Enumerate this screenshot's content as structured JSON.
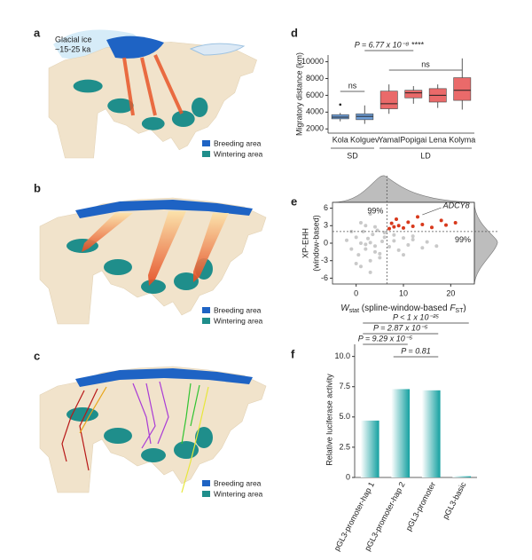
{
  "maps": [
    {
      "panel_label": "a",
      "annotation": [
        "Glacial ice",
        "~15-25 ka"
      ],
      "legend": [
        "Breeding area",
        "Wintering area"
      ]
    },
    {
      "panel_label": "b",
      "legend": [
        "Breeding area",
        "Wintering area"
      ]
    },
    {
      "panel_label": "c",
      "legend": [
        "Breeding area",
        "Wintering area"
      ]
    }
  ],
  "chart_data": [
    {
      "type": "box",
      "panel_label": "d",
      "y_label": "Migratory distance (km)",
      "categories": [
        "Kola",
        "Kolguev",
        "Yamal",
        "Popigai",
        "Lena",
        "Kolyma"
      ],
      "group_of": [
        "SD",
        "SD",
        "LD",
        "LD",
        "LD",
        "LD"
      ],
      "colors": [
        "#6f9fd8",
        "#6f9fd8",
        "#ea6a6a",
        "#ea6a6a",
        "#ea6a6a",
        "#ea6a6a"
      ],
      "min": [
        2900,
        2600,
        3800,
        5000,
        4500,
        4300
      ],
      "q1": [
        3200,
        3100,
        4400,
        5700,
        5200,
        5400
      ],
      "median": [
        3400,
        3500,
        5000,
        6300,
        6000,
        6600
      ],
      "q3": [
        3700,
        3800,
        6500,
        6600,
        6800,
        8100
      ],
      "max": [
        3900,
        4800,
        7300,
        7100,
        7300,
        10400
      ],
      "outliers": [
        [
          4900
        ],
        [],
        [],
        [],
        [],
        []
      ],
      "annotations": [
        "ns",
        "P = 6.77 x 10⁻⁸ ****",
        "ns"
      ],
      "ylim": [
        1500,
        10800
      ],
      "yticks": [
        2000,
        4000,
        6000,
        8000,
        10000
      ]
    },
    {
      "type": "scatter",
      "panel_label": "e",
      "x_label_parts": [
        "W",
        "stat",
        " (spline-window-based ",
        "F",
        "ST",
        ")"
      ],
      "y_label": [
        "XP-EHH",
        "(window-based)"
      ],
      "annotations": [
        "99%",
        "99%",
        "ADCY8"
      ],
      "x_threshold": 6.5,
      "y_threshold": 2,
      "series": [
        {
          "color": "#c9c9c9",
          "x": [
            -2,
            -1,
            0,
            0.5,
            1,
            1.5,
            2,
            2.5,
            3,
            3.5,
            4,
            4.5,
            5,
            5.5,
            6,
            7,
            8,
            9,
            10,
            11,
            12,
            14,
            1,
            2,
            3,
            4,
            5,
            6,
            -1,
            0,
            1,
            2,
            3,
            4,
            8,
            10,
            12,
            15,
            17,
            3
          ],
          "y": [
            0.5,
            -1,
            1,
            -2,
            0,
            2,
            -1,
            0.8,
            -3,
            1.5,
            -0.5,
            2.2,
            -1.8,
            0.3,
            1,
            -0.6,
            0.4,
            -1.2,
            0.9,
            -0.3,
            0.6,
            -0.8,
            -4,
            3,
            -5,
            2.8,
            -2.5,
            1.8,
            2,
            -3.5,
            3.5,
            -0.2,
            0.1,
            -1.5,
            1.4,
            -2,
            1.2,
            0.2,
            -0.5,
            5
          ]
        },
        {
          "color": "#d8391c",
          "x": [
            7,
            7.5,
            8,
            8.5,
            9,
            10,
            11,
            12,
            13,
            14,
            16,
            18,
            19,
            21
          ],
          "y": [
            2.5,
            3.4,
            2.8,
            4.1,
            3.0,
            2.6,
            3.6,
            2.9,
            4.5,
            3.2,
            2.7,
            3.9,
            3.1,
            3.5
          ]
        }
      ],
      "xlim": [
        -5,
        25
      ],
      "xticks": [
        0,
        10,
        20
      ],
      "ylim": [
        -7,
        7
      ],
      "yticks": [
        -6,
        -3,
        0,
        3,
        6
      ]
    },
    {
      "type": "bar",
      "panel_label": "f",
      "y_label": "Relative luciferase activity",
      "categories": [
        "pGL3-promoter-hap 1",
        "pGL3-promoter-hap 2",
        "pGL3-promoter",
        "pGL3-basic"
      ],
      "values": [
        4.7,
        7.3,
        7.2,
        0.1
      ],
      "color": "#14a0a0",
      "annotations": [
        "P = 9.29 x 10⁻⁵",
        "P = 2.87 x 10⁻⁵",
        "P = 0.81",
        "P < 1 x 10⁻²⁵"
      ],
      "ylim": [
        0,
        11
      ],
      "yticks": [
        0,
        2.5,
        {
          "value": 5,
          "label": "5.0"
        },
        7.5,
        {
          "value": 10,
          "label": "10.0"
        }
      ]
    }
  ]
}
